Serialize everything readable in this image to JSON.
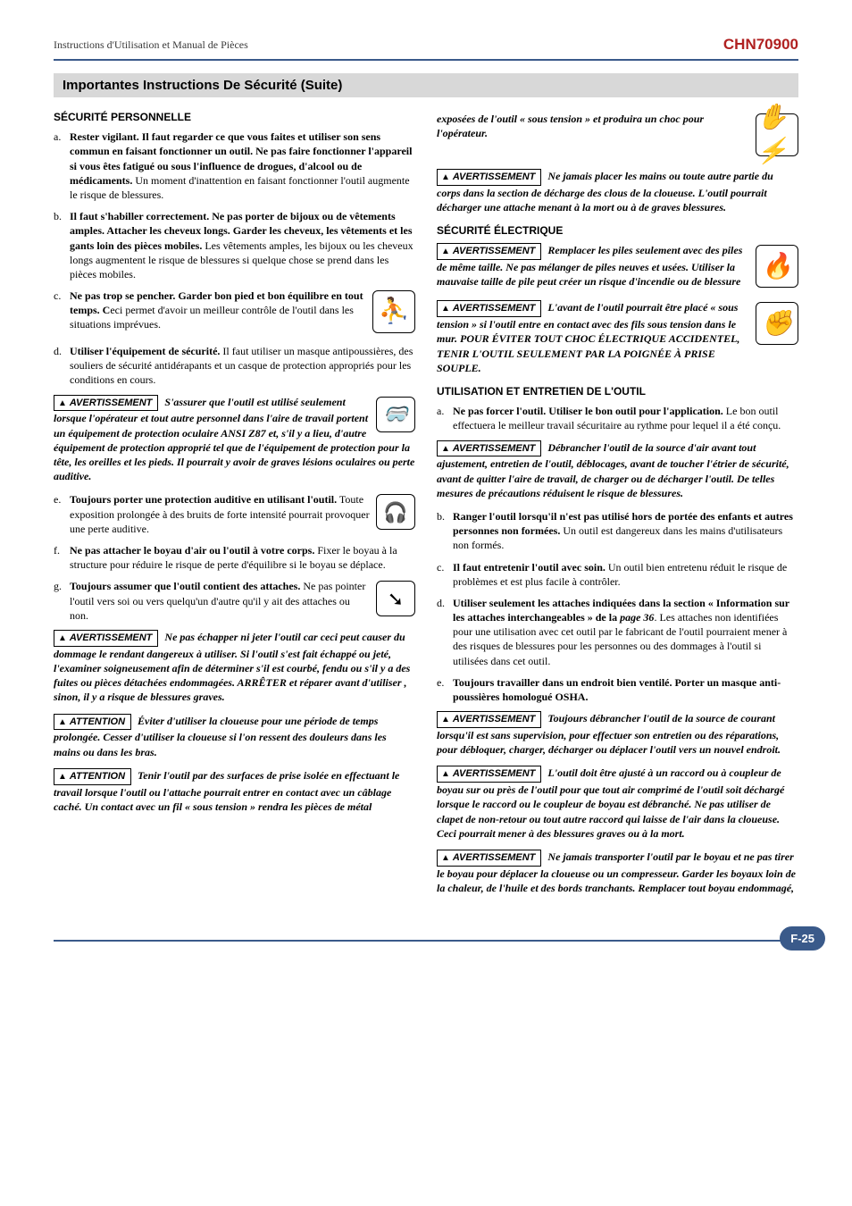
{
  "header": {
    "left": "Instructions d'Utilisation et Manual de Pièces",
    "right": "CHN70900"
  },
  "section_title": "Importantes Instructions De Sécurité (Suite)",
  "left": {
    "h1": "SÉCURITÉ PERSONNELLE",
    "a": "Rester vigilant. Il faut regarder ce que vous faites et utiliser son sens commun en faisant fonctionner un outil. Ne pas faire fonctionner l'appareil si vous êtes fatigué ou sous l'influence de drogues, d'alcool ou de médicaments.",
    "a_tail": " Un moment d'inattention en faisant fonctionner l'outil augmente le risque de blessures.",
    "b": "Il faut s'habiller correctement. Ne pas porter de bijoux ou de vêtements amples. Attacher les cheveux longs. Garder les cheveux, les vêtements et les gants loin des pièces mobiles.",
    "b_tail": " Les vêtements amples, les bijoux ou les cheveux longs augmentent le risque de blessures si quelque chose se prend dans les pièces mobiles.",
    "c": "Ne pas trop se pencher. Garder bon pied et bon équilibre en tout temps. C",
    "c_tail": "eci permet d'avoir un meilleur contrôle de l'outil dans les situations imprévues.",
    "d": "Utiliser l'équipement de sécurité.",
    "d_tail": " Il faut utiliser un masque antipoussières, des souliers de sécurité antidérapants et un casque de protection appropriés pour les conditions en cours.",
    "w1_label": "AVERTISSEMENT",
    "w1": "S'assurer que l'outil est utilisé seulement lorsque l'opérateur et tout autre personnel dans l'aire de travail portent un équipement de protection oculaire ANSI Z87 et, s'il y a lieu, d'autre équipement de protection approprié tel que de l'équipement de protection pour la tête, les oreilles et les pieds. Il pourrait y avoir de graves lésions oculaires ou perte auditive.",
    "e": "Toujours porter une protection auditive en utilisant l'outil.",
    "e_tail": " Toute exposition prolongée à des bruits de forte intensité pourrait provoquer une perte auditive.",
    "f": "Ne pas attacher le boyau d'air ou l'outil à votre corps.",
    "f_tail": " Fixer le boyau à la structure pour réduire le risque de perte d'équilibre si le boyau se déplace.",
    "g": "Toujours assumer que l'outil contient des attaches.",
    "g_tail": " Ne pas pointer l'outil vers soi ou vers quelqu'un d'autre qu'il y ait des attaches ou non.",
    "w2_label": "AVERTISSEMENT",
    "w2": "Ne pas échapper ni jeter l'outil car ceci peut causer du dommage le rendant dangereux à utiliser. Si l'outil s'est fait échappé ou jeté, l'examiner soigneusement afin de déterminer s'il est courbé, fendu ou s'il y a des fuites ou pièces détachées endommagées. ARRÊTER et réparer avant d'utiliser , sinon, il y a risque de blessures graves.",
    "att1_label": "ATTENTION",
    "att1": "Éviter d'utiliser la cloueuse pour une période de temps prolongée. Cesser d'utiliser la cloueuse si l'on ressent des douleurs dans les mains ou dans les bras.",
    "att2_label": "ATTENTION",
    "att2": "Tenir l'outil par des surfaces de prise isolée en effectuant le travail lorsque l'outil ou l'attache pourrait entrer en contact avec un câblage caché. Un contact avec un fil « sous tension » rendra les pièces de métal"
  },
  "right": {
    "cont": "exposées de l'outil « sous tension » et produira un choc pour l'opérateur.",
    "w3_label": "AVERTISSEMENT",
    "w3": "Ne jamais placer les mains ou toute autre partie du corps dans la section de décharge des clous de la cloueuse. L'outil pourrait décharger une attache menant à la mort ou à de graves blessures.",
    "h2": "SÉCURITÉ ÉLECTRIQUE",
    "w4_label": "AVERTISSEMENT",
    "w4": "Remplacer les piles seulement avec des piles de même taille. Ne pas mélanger de piles neuves et usées. Utiliser la mauvaise taille de pile peut créer un risque d'incendie ou de blessure",
    "w5_label": "AVERTISSEMENT",
    "w5": "L'avant de l'outil pourrait être placé « sous tension » si l'outil entre en contact avec des fils sous tension dans le mur. POUR ÉVITER TOUT CHOC ÉLECTRIQUE ACCIDENTEL, TENIR L'OUTIL SEULEMENT PAR LA POIGNÉE À PRISE SOUPLE.",
    "h3": "UTILISATION ET ENTRETIEN DE L'OUTIL",
    "ra": "Ne pas forcer l'outil. Utiliser le bon outil pour l'application.",
    "ra_tail": " Le bon outil effectuera le meilleur travail sécuritaire au rythme pour lequel il a été conçu.",
    "w6_label": "AVERTISSEMENT",
    "w6": "Débrancher l'outil de la source d'air  avant tout ajustement, entretien de l'outil, déblocages, avant de toucher l'étrier de sécurité, avant de quitter l'aire de travail, de charger ou de décharger l'outil. De telles mesures de précautions réduisent le risque de blessures.",
    "rb": "Ranger l'outil lorsqu'il n'est pas utilisé hors de portée des enfants et autres personnes non formées.",
    "rb_tail": " Un outil est dangereux dans les mains d'utilisateurs non formés.",
    "rc": "Il faut entretenir l'outil avec soin.",
    "rc_tail": " Un outil bien entretenu réduit le risque de problèmes et est plus facile à contrôler.",
    "rd": "Utiliser seulement les attaches indiquées dans la section « Information sur les attaches interchangeables » de la ",
    "rd_em": "page 36",
    "rd_tail": ". Les attaches non identifiées pour une utilisation avec cet outil par le fabricant de l'outil pourraient mener à des risques de blessures pour les personnes ou des dommages à l'outil si utilisées dans cet outil.",
    "re": "Toujours travailler dans un endroit bien ventilé. Porter un masque anti-poussières homologué OSHA.",
    "w7_label": "AVERTISSEMENT",
    "w7": "Toujours débrancher l'outil de la source de courant lorsqu'il est sans supervision, pour effectuer son entretien ou des réparations, pour débloquer, charger, décharger ou déplacer l'outil vers un nouvel endroit.",
    "w8_label": "AVERTISSEMENT",
    "w8": "L'outil doit être ajusté à un raccord ou à coupleur de boyau sur ou près de l'outil pour que tout air comprimé de l'outil soit déchargé lorsque le raccord ou le coupleur de boyau est débranché. Ne pas utiliser de clapet de non-retour ou tout autre raccord qui laisse de l'air dans la cloueuse. Ceci pourrait mener à des blessures graves ou à la mort.",
    "w9_label": "AVERTISSEMENT",
    "w9": "Ne jamais transporter l'outil par le boyau et ne pas tirer le boyau pour déplacer la cloueuse ou un compresseur. Garder les boyaux loin de la chaleur, de l'huile et des bords tranchants. Remplacer tout boyau endommagé,"
  },
  "page_number": "F-25"
}
